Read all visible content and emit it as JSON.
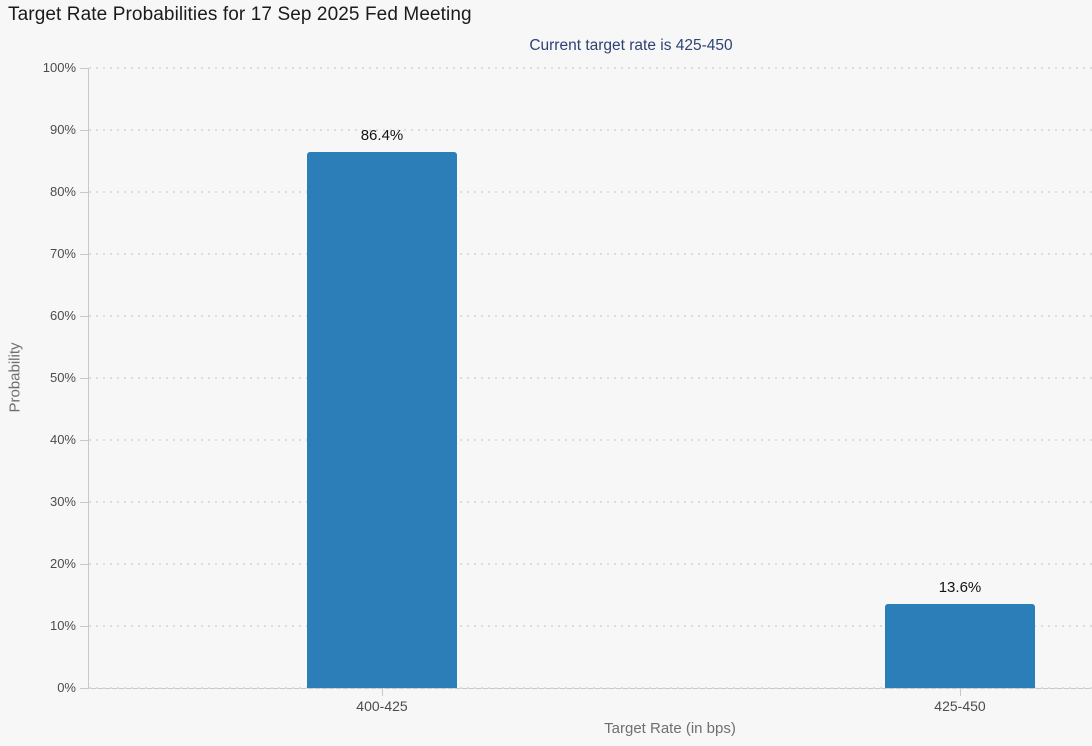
{
  "header": {
    "title": "Target Rate Probabilities for 17 Sep 2025 Fed Meeting",
    "subtitle": "Current target rate is 425-450"
  },
  "chart_data": {
    "type": "bar",
    "title": "Target Rate Probabilities for 17 Sep 2025 Fed Meeting",
    "subtitle": "Current target rate is 425-450",
    "categories": [
      "400-425",
      "425-450"
    ],
    "values": [
      86.4,
      13.6
    ],
    "value_labels": [
      "86.4%",
      "13.6%"
    ],
    "xlabel": "Target Rate (in bps)",
    "ylabel": "Probability",
    "ylim": [
      0,
      100
    ],
    "yticks": [
      0,
      10,
      20,
      30,
      40,
      50,
      60,
      70,
      80,
      90,
      100
    ],
    "ytick_labels": [
      "0%",
      "10%",
      "20%",
      "30%",
      "40%",
      "50%",
      "60%",
      "70%",
      "80%",
      "90%",
      "100%"
    ],
    "grid": "horizontal-dotted",
    "legend": "none",
    "bar_color": "#2c7eb8",
    "background_color": "#f7f7f8"
  }
}
